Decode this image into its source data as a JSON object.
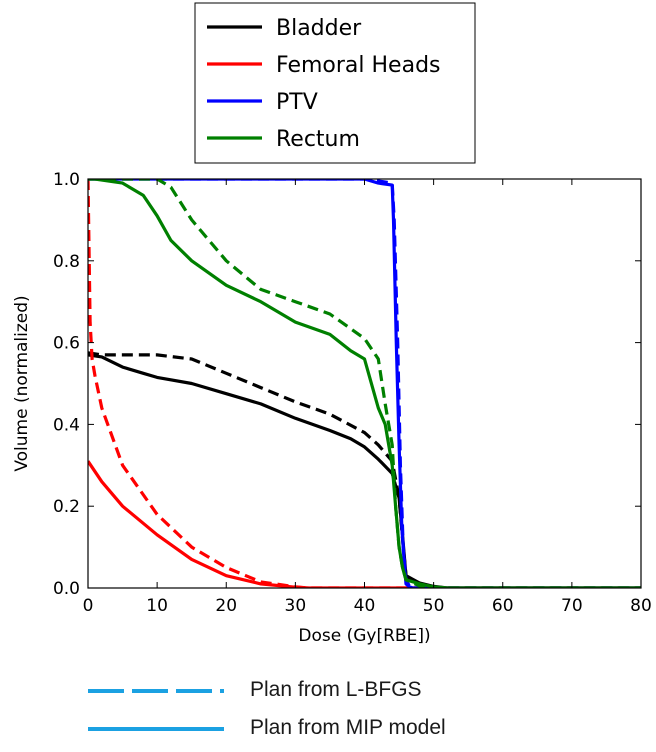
{
  "chart_data": {
    "type": "line",
    "title": "",
    "xlabel": "Dose (Gy[RBE])",
    "ylabel": "Volume (normalized)",
    "xlim": [
      0,
      80
    ],
    "ylim": [
      0,
      1.0
    ],
    "xticks": [
      0,
      10,
      20,
      30,
      40,
      50,
      60,
      70,
      80
    ],
    "yticks": [
      0.0,
      0.2,
      0.4,
      0.6,
      0.8,
      1.0
    ],
    "xtick_labels": [
      "0",
      "10",
      "20",
      "30",
      "40",
      "50",
      "60",
      "70",
      "80"
    ],
    "ytick_labels": [
      "0.0",
      "0.2",
      "0.4",
      "0.6",
      "0.8",
      "1.0"
    ],
    "grid": false,
    "legend_placement": "top (above plot)",
    "legend": [
      {
        "name": "Bladder",
        "color": "#000000"
      },
      {
        "name": "Femoral Heads",
        "color": "#ff0000"
      },
      {
        "name": "PTV",
        "color": "#0000ff"
      },
      {
        "name": "Rectum",
        "color": "#008000"
      }
    ],
    "style_legend": [
      {
        "label": "Plan from L-BFGS",
        "style": "dashed",
        "color": "#1ba1e2"
      },
      {
        "label": "Plan from MIP model",
        "style": "solid",
        "color": "#1ba1e2"
      }
    ],
    "series": [
      {
        "name": "Bladder",
        "plan": "MIP",
        "style": "solid",
        "color": "#000000",
        "x": [
          0,
          2,
          5,
          8,
          10,
          15,
          20,
          25,
          30,
          35,
          38,
          40,
          42,
          44,
          45,
          45.5,
          46,
          48,
          50,
          52,
          80
        ],
        "y": [
          0.57,
          0.565,
          0.54,
          0.525,
          0.515,
          0.5,
          0.475,
          0.45,
          0.415,
          0.385,
          0.365,
          0.345,
          0.315,
          0.28,
          0.22,
          0.13,
          0.03,
          0.012,
          0.004,
          0.0,
          0.0
        ]
      },
      {
        "name": "Bladder",
        "plan": "L-BFGS",
        "style": "dashed",
        "color": "#000000",
        "x": [
          0,
          2,
          5,
          10,
          15,
          20,
          25,
          30,
          35,
          40,
          42,
          44,
          45,
          45.5,
          46,
          48,
          50,
          80
        ],
        "y": [
          0.575,
          0.57,
          0.57,
          0.57,
          0.56,
          0.525,
          0.49,
          0.455,
          0.425,
          0.38,
          0.35,
          0.31,
          0.22,
          0.12,
          0.03,
          0.01,
          0.0,
          0.0
        ]
      },
      {
        "name": "Femoral Heads",
        "plan": "MIP",
        "style": "solid",
        "color": "#ff0000",
        "x": [
          0,
          2,
          5,
          10,
          15,
          20,
          25,
          30,
          32,
          80
        ],
        "y": [
          0.31,
          0.26,
          0.2,
          0.13,
          0.07,
          0.03,
          0.01,
          0.002,
          0.0,
          0.0
        ]
      },
      {
        "name": "Femoral Heads",
        "plan": "L-BFGS",
        "style": "dashed",
        "color": "#ff0000",
        "x": [
          0,
          0.3,
          0.6,
          1,
          2,
          5,
          10,
          15,
          20,
          25,
          30,
          32,
          80
        ],
        "y": [
          1.0,
          0.65,
          0.56,
          0.52,
          0.44,
          0.3,
          0.18,
          0.1,
          0.05,
          0.015,
          0.003,
          0.0,
          0.0
        ]
      },
      {
        "name": "PTV",
        "plan": "MIP",
        "style": "solid",
        "color": "#0000ff",
        "x": [
          0,
          40,
          42,
          44,
          44.2,
          44.6,
          45,
          45.4,
          45.8,
          46,
          46.5,
          47,
          80
        ],
        "y": [
          1.0,
          1.0,
          0.99,
          0.985,
          0.9,
          0.6,
          0.35,
          0.15,
          0.05,
          0.01,
          0.003,
          0.0,
          0.0
        ]
      },
      {
        "name": "PTV",
        "plan": "L-BFGS",
        "style": "dashed",
        "color": "#0000ff",
        "x": [
          0,
          40,
          42,
          44,
          44.3,
          44.8,
          45.2,
          45.6,
          46,
          46.5,
          47,
          80
        ],
        "y": [
          1.0,
          1.0,
          0.995,
          0.99,
          0.9,
          0.6,
          0.3,
          0.1,
          0.02,
          0.005,
          0.0,
          0.0
        ]
      },
      {
        "name": "Rectum",
        "plan": "MIP",
        "style": "solid",
        "color": "#008000",
        "x": [
          0,
          1,
          3,
          5,
          8,
          10,
          12,
          15,
          20,
          25,
          30,
          35,
          38,
          40,
          42,
          43,
          44,
          44.5,
          45,
          45.5,
          46,
          48,
          50,
          52,
          80
        ],
        "y": [
          1.0,
          1.0,
          0.995,
          0.99,
          0.96,
          0.91,
          0.85,
          0.8,
          0.74,
          0.7,
          0.65,
          0.62,
          0.58,
          0.56,
          0.44,
          0.4,
          0.3,
          0.2,
          0.1,
          0.05,
          0.02,
          0.01,
          0.003,
          0.0,
          0.0
        ]
      },
      {
        "name": "Rectum",
        "plan": "L-BFGS",
        "style": "dashed",
        "color": "#008000",
        "x": [
          0,
          1,
          5,
          10,
          12,
          15,
          20,
          25,
          30,
          35,
          40,
          42,
          43,
          44,
          44.5,
          45,
          45.5,
          46,
          48,
          50,
          80
        ],
        "y": [
          1.0,
          1.0,
          1.0,
          1.0,
          0.98,
          0.9,
          0.8,
          0.73,
          0.7,
          0.67,
          0.61,
          0.56,
          0.45,
          0.35,
          0.2,
          0.1,
          0.05,
          0.02,
          0.005,
          0.0,
          0.0
        ]
      }
    ]
  }
}
